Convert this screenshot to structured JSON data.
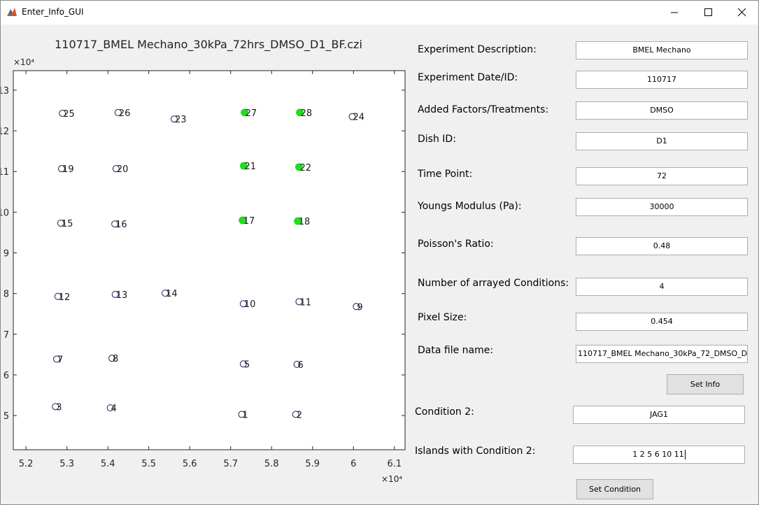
{
  "window_title": "Enter_Info_GUI",
  "chart_data": {
    "type": "scatter",
    "title": "110717_BMEL Mechano_30kPa_72hrs_DMSO_D1_BF.czi",
    "x_multiplier": "×10⁴",
    "y_multiplier": "×10⁴",
    "xlim": [
      5.169,
      6.126
    ],
    "ylim": [
      4.16,
      13.48
    ],
    "xticks": [
      5.2,
      5.3,
      5.4,
      5.5,
      5.6,
      5.7,
      5.8,
      5.9,
      6,
      6.1
    ],
    "yticks": [
      5,
      6,
      7,
      8,
      9,
      10,
      11,
      12,
      13
    ],
    "series": [
      {
        "color": "#1c1c5a",
        "filled": false,
        "labels": [
          "25",
          "26",
          "23",
          "24",
          "19",
          "20",
          "15",
          "16",
          "12",
          "13",
          "14",
          "10",
          "11",
          "9",
          "7",
          "8",
          "5",
          "6",
          "3",
          "4",
          "1",
          "2"
        ],
        "x": [
          5.289,
          5.425,
          5.562,
          5.997,
          5.287,
          5.42,
          5.285,
          5.417,
          5.278,
          5.418,
          5.54,
          5.731,
          5.867,
          6.007,
          5.275,
          5.41,
          5.731,
          5.862,
          5.272,
          5.406,
          5.727,
          5.859
        ],
        "values": [
          12.43,
          12.45,
          12.29,
          12.35,
          11.07,
          11.07,
          9.73,
          9.71,
          7.93,
          7.98,
          8.01,
          7.75,
          7.8,
          7.68,
          6.39,
          6.41,
          6.27,
          6.26,
          5.22,
          5.19,
          5.03,
          5.03
        ]
      },
      {
        "color": "#22dd22",
        "filled": true,
        "labels": [
          "27",
          "28",
          "21",
          "22",
          "17",
          "18"
        ],
        "x": [
          5.734,
          5.869,
          5.732,
          5.867,
          5.729,
          5.864
        ],
        "values": [
          12.45,
          12.45,
          11.14,
          11.11,
          9.8,
          9.78
        ]
      }
    ]
  },
  "form": {
    "fields": [
      {
        "label": "Experiment Description:",
        "value": "BMEL Mechano"
      },
      {
        "label": "Experiment Date/ID:",
        "value": "110717"
      },
      {
        "label": "Added Factors/Treatments:",
        "value": "DMSO"
      },
      {
        "label": "Dish ID:",
        "value": "D1"
      },
      {
        "label": "Time Point:",
        "value": "72"
      },
      {
        "label": "Youngs Modulus (Pa):",
        "value": "30000"
      },
      {
        "label": "Poisson's Ratio:",
        "value": "0.48"
      },
      {
        "label": "Number of arrayed Conditions:",
        "value": "4"
      },
      {
        "label": "Pixel Size:",
        "value": "0.454"
      },
      {
        "label": "Data file name:",
        "value": "110717_BMEL Mechano_30kPa_72_DMSO_D"
      }
    ],
    "set_info": "Set Info",
    "condition_label": "Condition 2:",
    "condition_value": "JAG1",
    "islands_label": "Islands with Condition 2:",
    "islands_value": "1 2 5 6 10 11",
    "set_condition": "Set Condition"
  }
}
